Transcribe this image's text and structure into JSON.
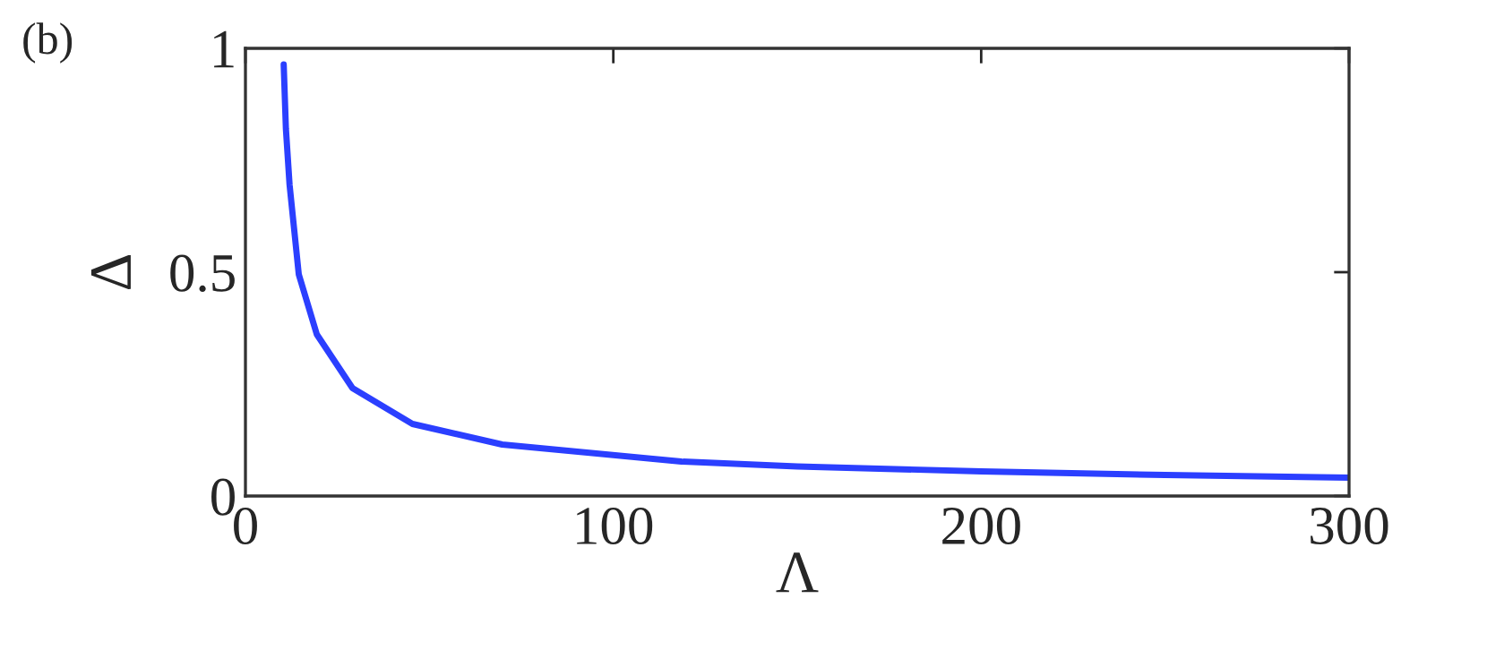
{
  "chart_data": {
    "type": "line",
    "xlabel": "Λ",
    "ylabel": "Δ",
    "annotations": [
      "(b)"
    ],
    "series": [
      {
        "color": "#2b3fff",
        "x": [
          10.4,
          11,
          12,
          14.5,
          19.4,
          29.1,
          45.4,
          69.8,
          118.5,
          150,
          200,
          250,
          300
        ],
        "values": [
          0.964,
          0.82,
          0.695,
          0.495,
          0.361,
          0.241,
          0.161,
          0.115,
          0.077,
          0.066,
          0.055,
          0.047,
          0.041
        ]
      }
    ],
    "xlim": [
      0,
      300
    ],
    "ylim": [
      0,
      1
    ],
    "xticks": [
      0,
      100,
      200,
      300
    ],
    "yticks": [
      0,
      0.5,
      1
    ],
    "grid": false,
    "legend": false,
    "marker": "none",
    "line_style": "solid"
  }
}
